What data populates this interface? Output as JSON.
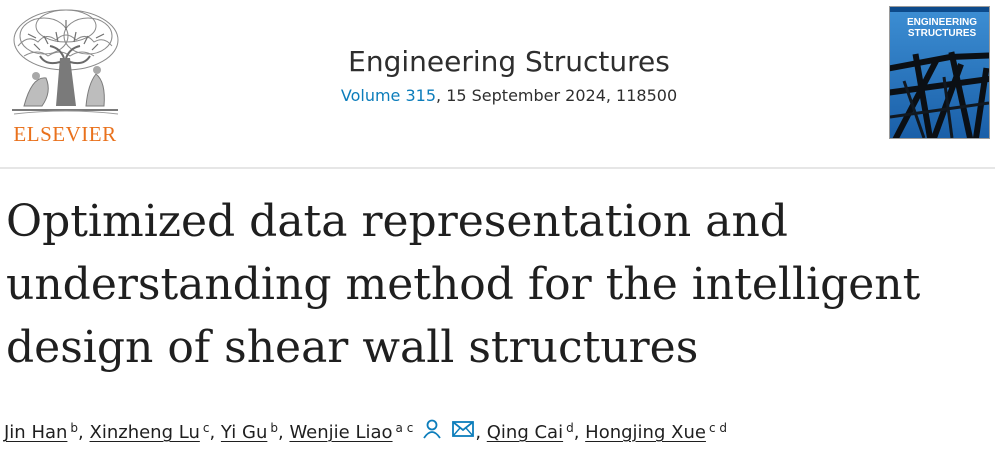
{
  "publisher": {
    "name": "ELSEVIER",
    "logo_color": "#e9711c"
  },
  "journal": {
    "title": "Engineering Structures",
    "volume_link": "Volume 315",
    "issue_details": ", 15 September 2024, 118500",
    "link_color": "#0c7dbb",
    "cover_title_line1": "ENGINEERING",
    "cover_title_line2": "STRUCTURES"
  },
  "article": {
    "title": "Optimized data representation and understanding method for the intelligent design of shear wall structures"
  },
  "authors": [
    {
      "name": "Jin Han",
      "affiliations": "b"
    },
    {
      "name": "Xinzheng Lu",
      "affiliations": "c"
    },
    {
      "name": "Yi Gu",
      "affiliations": "b"
    },
    {
      "name": "Wenjie Liao",
      "affiliations": "a c",
      "icons": [
        "person-icon",
        "envelope-icon"
      ]
    },
    {
      "name": "Qing Cai",
      "affiliations": "d"
    },
    {
      "name": "Hongjing Xue",
      "affiliations": "c d"
    }
  ],
  "separators": {
    "comma": ", "
  }
}
